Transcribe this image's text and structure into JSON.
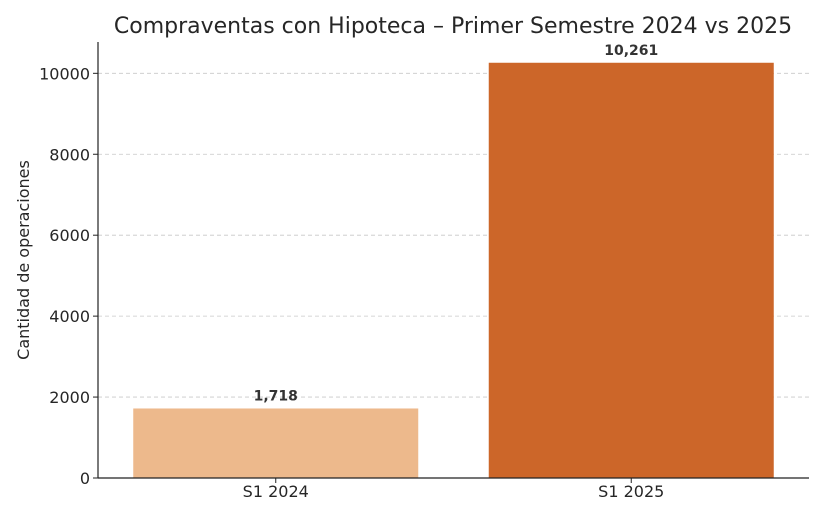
{
  "chart_data": {
    "type": "bar",
    "title": "Compraventas con Hipoteca – Primer Semestre 2024 vs 2025",
    "xlabel": "",
    "ylabel": "Cantidad de operaciones",
    "categories": [
      "S1 2024",
      "S1 2025"
    ],
    "values": [
      1718,
      10261
    ],
    "data_labels": [
      "1,718",
      "10,261"
    ],
    "colors": [
      "#EDB98C",
      "#CC6629"
    ],
    "ylim": [
      0,
      10774
    ],
    "yticks": [
      0,
      2000,
      4000,
      6000,
      8000,
      10000
    ],
    "grid": "y-dashed",
    "legend": "none"
  }
}
